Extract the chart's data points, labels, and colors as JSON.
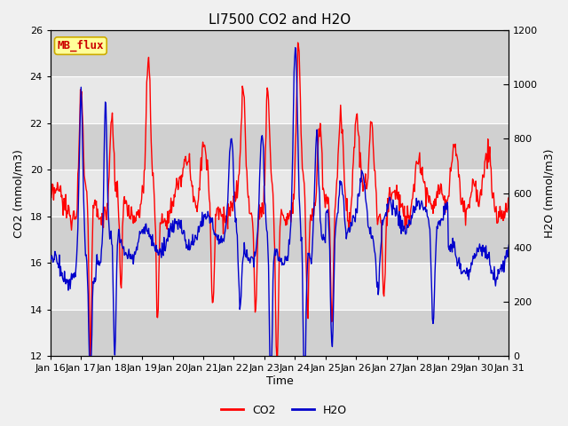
{
  "title": "LI7500 CO2 and H2O",
  "xlabel": "Time",
  "ylabel_left": "CO2 (mmol/m3)",
  "ylabel_right": "H2O (mmol/m3)",
  "ylim_left": [
    12,
    26
  ],
  "ylim_right": [
    0,
    1200
  ],
  "yticks_left": [
    12,
    14,
    16,
    18,
    20,
    22,
    24,
    26
  ],
  "yticks_right": [
    0,
    200,
    400,
    600,
    800,
    1000,
    1200
  ],
  "xtick_labels": [
    "Jan 16",
    "Jan 17",
    "Jan 18",
    "Jan 19",
    "Jan 20",
    "Jan 21",
    "Jan 22",
    "Jan 23",
    "Jan 24",
    "Jan 25",
    "Jan 26",
    "Jan 27",
    "Jan 28",
    "Jan 29",
    "Jan 30",
    "Jan 31"
  ],
  "co2_color": "#ff0000",
  "h2o_color": "#0000cc",
  "fig_bg_color": "#f0f0f0",
  "plot_bg_light": "#e8e8e8",
  "plot_bg_dark": "#d0d0d0",
  "annotation_text": "MB_flux",
  "annotation_color": "#cc0000",
  "annotation_bg": "#ffff99",
  "annotation_border": "#ccaa00",
  "legend_co2": "CO2",
  "legend_h2o": "H2O",
  "title_fontsize": 11,
  "label_fontsize": 9,
  "tick_fontsize": 8,
  "line_width": 1.0,
  "n_days": 15,
  "n_points": 720
}
